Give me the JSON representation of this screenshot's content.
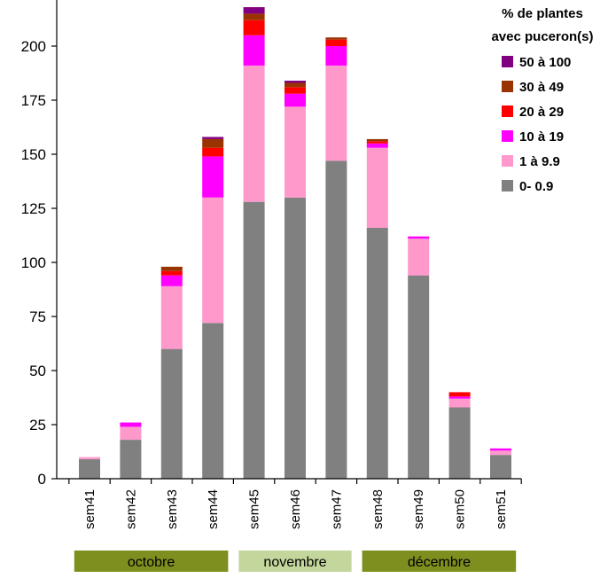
{
  "chart_data": {
    "type": "bar",
    "stacked": true,
    "title": "",
    "xlabel": "",
    "ylabel": "",
    "ylim": [
      0,
      220
    ],
    "yticks": [
      0,
      25,
      50,
      75,
      100,
      125,
      150,
      175,
      200
    ],
    "grid": false,
    "categories": [
      "sem41",
      "sem42",
      "sem43",
      "sem44",
      "sem45",
      "sem46",
      "sem47",
      "sem48",
      "sem49",
      "sem50",
      "sem51"
    ],
    "series": [
      {
        "name": "0- 0.9",
        "color": "#808080",
        "values": [
          9,
          18,
          60,
          72,
          128,
          130,
          147,
          116,
          94,
          33,
          11
        ]
      },
      {
        "name": "1 à 9.9",
        "color": "#ff99cc",
        "values": [
          1,
          6,
          29,
          58,
          63,
          42,
          44,
          37,
          17,
          4,
          2
        ]
      },
      {
        "name": "10 à 19",
        "color": "#ff00ff",
        "values": [
          0,
          2,
          5,
          19,
          14,
          6,
          9,
          2,
          1,
          1,
          1
        ]
      },
      {
        "name": "20 à 29",
        "color": "#ff0000",
        "values": [
          0,
          0,
          2,
          4,
          7,
          3,
          3,
          1,
          0,
          2,
          0
        ]
      },
      {
        "name": "30 à 49",
        "color": "#993300",
        "values": [
          0,
          0,
          2,
          4,
          3,
          2,
          1,
          1,
          0,
          0,
          0
        ]
      },
      {
        "name": "50 à 100",
        "color": "#800080",
        "values": [
          0,
          0,
          0,
          1,
          3,
          1,
          0,
          0,
          0,
          0,
          0
        ]
      }
    ],
    "legend": {
      "title_line1": "% de plantes",
      "title_line2": "avec puceron(s)",
      "position": "top-right",
      "order": [
        "50 à 100",
        "30 à 49",
        "20 à 29",
        "10 à 19",
        "1 à 9.9",
        "0- 0.9"
      ]
    },
    "month_bands": [
      {
        "label": "octobre",
        "color": "#7f8f1f",
        "from": "sem41",
        "to": "sem44"
      },
      {
        "label": "novembre",
        "color": "#c3d69b",
        "from": "sem45",
        "to": "sem47"
      },
      {
        "label": "décembre",
        "color": "#7f8f1f",
        "from": "sem48",
        "to": "sem51"
      }
    ]
  }
}
